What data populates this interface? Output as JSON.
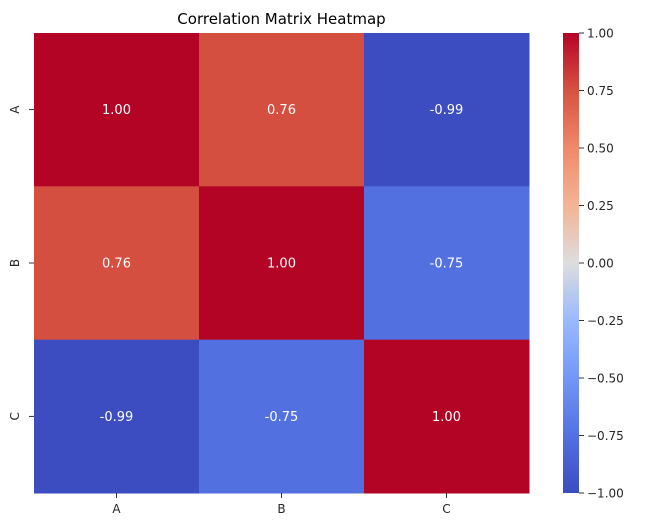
{
  "chart_data": {
    "type": "heatmap",
    "title": "Correlation Matrix Heatmap",
    "x_categories": [
      "A",
      "B",
      "C"
    ],
    "y_categories": [
      "A",
      "B",
      "C"
    ],
    "values": [
      [
        1.0,
        0.76,
        -0.99
      ],
      [
        0.76,
        1.0,
        -0.75
      ],
      [
        -0.99,
        -0.75,
        1.0
      ]
    ],
    "cell_labels": [
      [
        "1.00",
        "0.76",
        "-0.99"
      ],
      [
        "0.76",
        "1.00",
        "-0.75"
      ],
      [
        "-0.99",
        "-0.75",
        "1.00"
      ]
    ],
    "colormap": "coolwarm",
    "colorbar": {
      "vmin": -1.0,
      "vmax": 1.0,
      "ticks": [
        1.0,
        0.75,
        0.5,
        0.25,
        0.0,
        -0.25,
        -0.5,
        -0.75,
        -1.0
      ],
      "tick_labels": [
        "1.00",
        "0.75",
        "0.50",
        "0.25",
        "0.00",
        "−0.25",
        "−0.50",
        "−0.75",
        "−1.00"
      ],
      "placement": "right"
    },
    "colors": {
      "low": "#3b4cc0",
      "mid": "#dddddd",
      "high": "#b40426",
      "annotation": "#ffffff",
      "text": "#262626"
    }
  }
}
